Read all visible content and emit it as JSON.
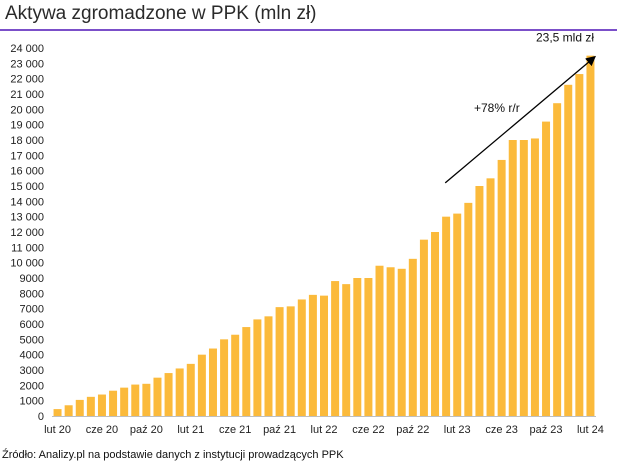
{
  "title": "Aktywa zgromadzone w PPK (mln zł)",
  "source": "Źródło: Analizy.pl na podstawie danych z instytucji prowadzących PPK",
  "colors": {
    "bar": "#FBBA3B",
    "accent_rule": "#7B4FC9",
    "axis": "#BFBFBF",
    "arrow": "#000000"
  },
  "chart_data": {
    "type": "bar",
    "title": "Aktywa zgromadzone w PPK (mln zł)",
    "xlabel": "",
    "ylabel": "",
    "ylim": [
      0,
      24000
    ],
    "ytick_step": 1000,
    "ytick_labels": [
      "0",
      "1000",
      "2000",
      "3000",
      "4000",
      "5000",
      "6000",
      "7000",
      "8000",
      "9000",
      "10 000",
      "11 000",
      "12 000",
      "13 000",
      "14 000",
      "15 000",
      "16 000",
      "17 000",
      "18 000",
      "19 000",
      "20 000",
      "21 000",
      "22 000",
      "23 000",
      "24 000"
    ],
    "grid": false,
    "categories": [
      "lut 20",
      "mar 20",
      "kwi 20",
      "maj 20",
      "cze 20",
      "lip 20",
      "sie 20",
      "wrz 20",
      "paź 20",
      "lis 20",
      "gru 20",
      "sty 21",
      "lut 21",
      "mar 21",
      "kwi 21",
      "maj 21",
      "cze 21",
      "lip 21",
      "sie 21",
      "wrz 21",
      "paź 21",
      "lis 21",
      "gru 21",
      "sty 22",
      "lut 22",
      "mar 22",
      "kwi 22",
      "maj 22",
      "cze 22",
      "lip 22",
      "sie 22",
      "wrz 22",
      "paź 22",
      "lis 22",
      "gru 22",
      "sty 23",
      "lut 23",
      "mar 23",
      "kwi 23",
      "maj 23",
      "cze 23",
      "lip 23",
      "sie 23",
      "wrz 23",
      "paź 23",
      "lis 23",
      "gru 23",
      "sty 24",
      "lut 24"
    ],
    "x_tick_labels": [
      {
        "index": 0,
        "label": "lut 20"
      },
      {
        "index": 4,
        "label": "cze 20"
      },
      {
        "index": 8,
        "label": "paź 20"
      },
      {
        "index": 12,
        "label": "lut 21"
      },
      {
        "index": 16,
        "label": "cze 21"
      },
      {
        "index": 20,
        "label": "paź 21"
      },
      {
        "index": 24,
        "label": "lut 22"
      },
      {
        "index": 28,
        "label": "cze 22"
      },
      {
        "index": 32,
        "label": "paź 22"
      },
      {
        "index": 36,
        "label": "lut 23"
      },
      {
        "index": 40,
        "label": "cze 23"
      },
      {
        "index": 44,
        "label": "paź 23"
      },
      {
        "index": 48,
        "label": "lut 24"
      }
    ],
    "values": [
      450,
      700,
      1050,
      1250,
      1400,
      1650,
      1850,
      2050,
      2100,
      2500,
      2800,
      3100,
      3400,
      4000,
      4400,
      5000,
      5300,
      5800,
      6300,
      6500,
      7100,
      7150,
      7600,
      7900,
      7850,
      8800,
      8600,
      9000,
      9000,
      9800,
      9700,
      9600,
      10250,
      11500,
      12000,
      13000,
      13200,
      13900,
      15000,
      15500,
      16700,
      18000,
      18000,
      18100,
      19200,
      20400,
      21600,
      22300,
      23500
    ],
    "annotations": [
      {
        "text": "23,5 mld zł",
        "at_index": 48
      },
      {
        "text": "+78% r/r",
        "type": "arrow",
        "from_index": 36,
        "from_value": 15200,
        "to_index": 48,
        "to_value": 23400
      }
    ]
  }
}
